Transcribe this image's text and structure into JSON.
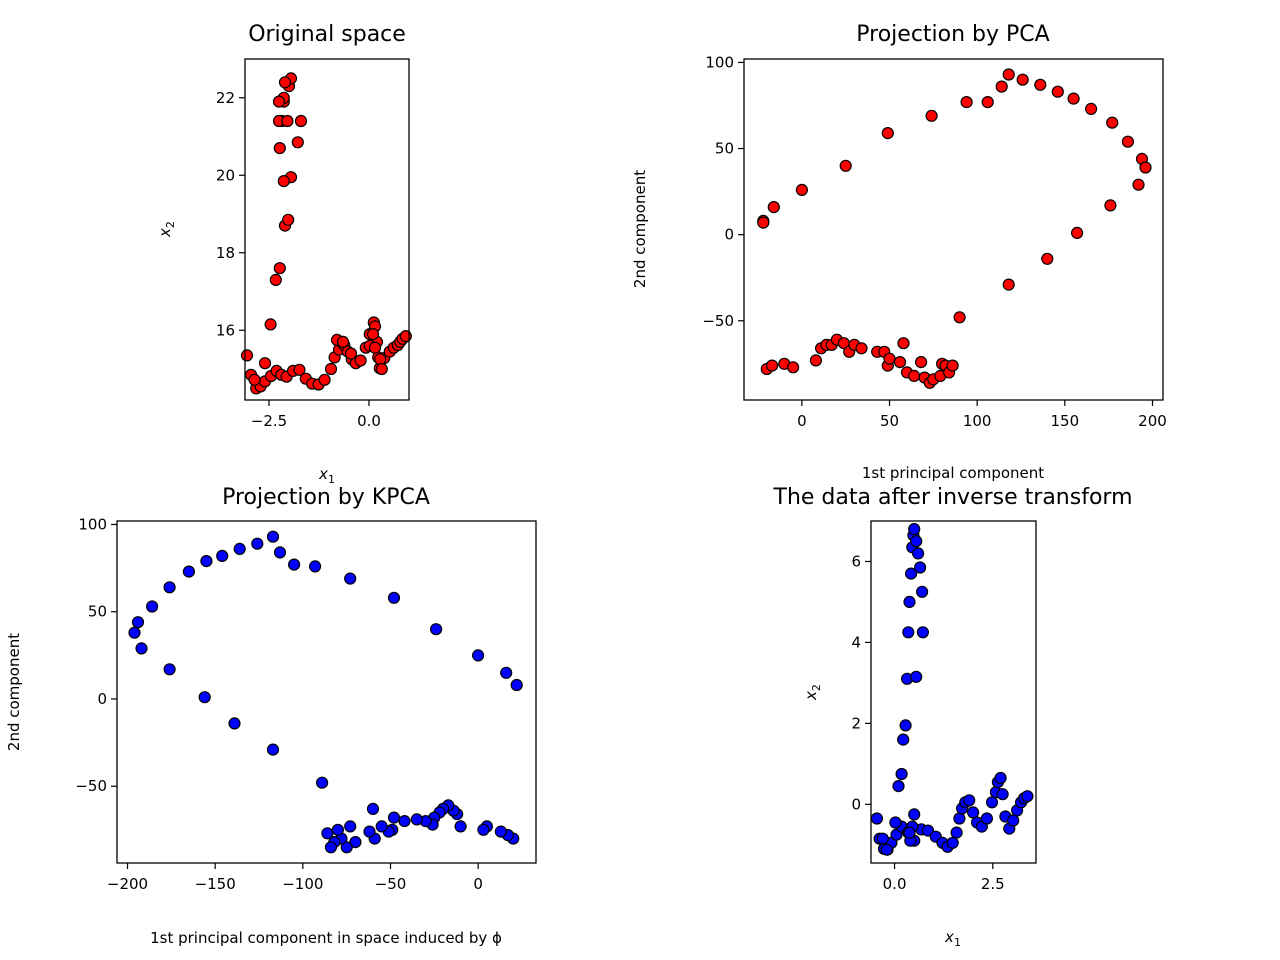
{
  "charts": [
    {
      "type": "scatter",
      "title": "Original space",
      "xlabel": "x1",
      "ylabel": "x2",
      "xlim": [
        -3.1,
        1.0
      ],
      "ylim": [
        14.2,
        23.0
      ],
      "xticks": [
        -2.5,
        0.0
      ],
      "xtick_labels": [
        "−2.5",
        "0.0"
      ],
      "yticks": [
        16,
        18,
        20,
        22
      ],
      "ytick_labels": [
        "16",
        "18",
        "20",
        "22"
      ],
      "marker_color": "#ff0000",
      "series": [
        {
          "x": [
            -2.82,
            -2.71,
            -2.6,
            -2.45,
            -2.31,
            -2.19,
            -2.06,
            -1.9,
            -1.74,
            -1.58,
            -1.42,
            -1.26,
            -1.11,
            -0.95,
            -0.86,
            -0.75,
            -0.7,
            -0.62,
            -0.53,
            -0.43,
            -0.33,
            -0.21,
            -0.08,
            0.02,
            0.12,
            0.15,
            0.2,
            0.23,
            0.27,
            0.38,
            0.52,
            0.62,
            0.72,
            0.78,
            0.84,
            0.92,
            -3.05,
            -2.95,
            -2.86,
            -2.6,
            -2.46,
            -2.33,
            -2.23,
            -2.1,
            -2.02,
            -1.95,
            -2.13,
            -2.23,
            -2.18,
            -2.13,
            -2.0,
            -1.95,
            -2.1,
            -2.13,
            -2.25,
            -2.25,
            -2.04,
            -1.78,
            -1.7,
            -0.8,
            -0.65,
            -0.45,
            0.02,
            0.28,
            0.32,
            0.1,
            0.15
          ],
          "y": [
            14.5,
            14.55,
            14.68,
            14.82,
            14.95,
            14.85,
            14.8,
            14.95,
            14.98,
            14.75,
            14.62,
            14.6,
            14.72,
            15.0,
            15.3,
            15.5,
            15.7,
            15.62,
            15.45,
            15.25,
            15.15,
            15.22,
            15.55,
            15.9,
            16.2,
            16.1,
            15.7,
            15.3,
            15.02,
            15.28,
            15.45,
            15.55,
            15.62,
            15.7,
            15.78,
            15.85,
            15.35,
            14.85,
            14.72,
            15.15,
            16.15,
            17.3,
            17.6,
            18.7,
            18.85,
            19.95,
            19.85,
            20.7,
            21.4,
            21.9,
            22.3,
            22.5,
            22.4,
            22.0,
            21.9,
            21.4,
            21.4,
            20.85,
            21.4,
            15.75,
            15.7,
            15.4,
            15.6,
            15.25,
            15.0,
            15.9,
            15.55
          ]
        }
      ]
    },
    {
      "type": "scatter",
      "title": "Projection by PCA",
      "xlabel": "1st principal component",
      "ylabel": "2nd component",
      "xlim": [
        -33,
        206
      ],
      "ylim": [
        -96,
        102
      ],
      "xticks": [
        0,
        50,
        100,
        150,
        200
      ],
      "xtick_labels": [
        "0",
        "50",
        "100",
        "150",
        "200"
      ],
      "yticks": [
        -50,
        0,
        50,
        100
      ],
      "ytick_labels": [
        "−50",
        "0",
        "50",
        "100"
      ],
      "marker_color": "#ff0000",
      "series": [
        {
          "x": [
            -22,
            -16,
            0,
            25,
            49,
            74,
            94,
            106,
            114,
            118,
            126,
            136,
            146,
            155,
            165,
            177,
            186,
            194,
            196,
            192,
            176,
            157,
            140,
            118,
            90,
            -22,
            -20,
            -17,
            -10,
            -5,
            8,
            11,
            14,
            17,
            20,
            24,
            27,
            30,
            34,
            43,
            47,
            49,
            50,
            56,
            58,
            60,
            64,
            68,
            70,
            73,
            75,
            79,
            80,
            82,
            84,
            86
          ],
          "y": [
            8,
            16,
            26,
            40,
            59,
            69,
            77,
            77,
            86,
            93,
            90,
            87,
            83,
            79,
            73,
            65,
            54,
            44,
            39,
            29,
            17,
            1,
            -14,
            -29,
            -48,
            7,
            -78,
            -76,
            -75,
            -77,
            -73,
            -66,
            -64,
            -64,
            -61,
            -63,
            -68,
            -64,
            -66,
            -68,
            -68,
            -76,
            -72,
            -74,
            -63,
            -80,
            -82,
            -74,
            -83,
            -86,
            -84,
            -82,
            -75,
            -76,
            -80,
            -76
          ]
        }
      ]
    },
    {
      "type": "scatter",
      "title": "Projection by KPCA",
      "xlabel": "1st principal component in space induced by ϕ",
      "ylabel": "2nd component",
      "xlim": [
        -206,
        33
      ],
      "ylim": [
        -94,
        102
      ],
      "xticks": [
        -200,
        -150,
        -100,
        -50,
        0
      ],
      "xtick_labels": [
        "−200",
        "−150",
        "−100",
        "−50",
        "0"
      ],
      "yticks": [
        -50,
        0,
        50,
        100
      ],
      "ytick_labels": [
        "−50",
        "0",
        "50",
        "100"
      ],
      "marker_color": "#0000ff",
      "series": [
        {
          "x": [
            22,
            16,
            0,
            -24,
            -48,
            -73,
            -93,
            -105,
            -113,
            -117,
            -126,
            -136,
            -146,
            -155,
            -165,
            -176,
            -186,
            -194,
            -196,
            -192,
            -176,
            -156,
            -139,
            -117,
            -89,
            20,
            17,
            13,
            5,
            3,
            -10,
            -12,
            -14,
            -17,
            -20,
            -22,
            -25,
            -26,
            -30,
            -35,
            -42,
            -48,
            -49,
            -51,
            -55,
            -59,
            -60,
            -62,
            -70,
            -73,
            -75,
            -78,
            -80,
            -82,
            -84,
            -86
          ],
          "y": [
            8,
            15,
            25,
            40,
            58,
            69,
            76,
            77,
            84,
            93,
            89,
            86,
            82,
            79,
            73,
            64,
            53,
            44,
            38,
            29,
            17,
            1,
            -14,
            -29,
            -48,
            -80,
            -78,
            -76,
            -73,
            -75,
            -73,
            -66,
            -64,
            -61,
            -63,
            -65,
            -68,
            -72,
            -70,
            -69,
            -70,
            -68,
            -75,
            -76,
            -73,
            -80,
            -63,
            -76,
            -82,
            -73,
            -85,
            -80,
            -75,
            -82,
            -85,
            -77
          ]
        }
      ]
    },
    {
      "type": "scatter",
      "title": "The data after inverse transform",
      "xlabel": "x1",
      "ylabel": "x2",
      "xlim": [
        -0.6,
        3.6
      ],
      "ylim": [
        -1.45,
        7.0
      ],
      "xticks": [
        0.0,
        2.5
      ],
      "xtick_labels": [
        "0.0",
        "2.5"
      ],
      "yticks": [
        0,
        2,
        4,
        6
      ],
      "ytick_labels": [
        "0",
        "2",
        "4",
        "6"
      ],
      "marker_color": "#0000ff",
      "series": [
        {
          "x": [
            -0.38,
            -0.27,
            -0.18,
            -0.08,
            0.05,
            0.18,
            0.35,
            0.5,
            0.68,
            0.85,
            1.05,
            1.22,
            1.35,
            1.48,
            1.58,
            1.65,
            1.72,
            1.8,
            1.9,
            2.0,
            2.1,
            2.22,
            2.35,
            2.48,
            2.58,
            2.63,
            2.7,
            2.75,
            2.82,
            2.92,
            3.02,
            3.12,
            3.22,
            3.3,
            3.38,
            -0.45,
            -0.3,
            -0.2,
            0.02,
            0.1,
            0.18,
            0.22,
            0.28,
            0.32,
            0.35,
            0.38,
            0.42,
            0.45,
            0.48,
            0.5,
            0.55,
            0.6,
            0.65,
            0.7,
            0.72,
            0.55,
            0.5,
            0.45,
            0.4,
            0.38
          ],
          "y": [
            -0.85,
            -1.1,
            -1.12,
            -0.95,
            -0.75,
            -0.55,
            -0.7,
            -0.9,
            -0.62,
            -0.65,
            -0.8,
            -0.95,
            -1.05,
            -0.95,
            -0.7,
            -0.35,
            -0.1,
            0.05,
            0.1,
            -0.2,
            -0.45,
            -0.55,
            -0.35,
            0.05,
            0.3,
            0.55,
            0.65,
            0.25,
            -0.3,
            -0.6,
            -0.4,
            -0.15,
            0.05,
            0.15,
            0.2,
            -0.35,
            -0.85,
            -1.12,
            -0.45,
            0.45,
            0.75,
            1.6,
            1.95,
            3.1,
            4.25,
            5.0,
            5.7,
            6.35,
            6.65,
            6.8,
            6.5,
            6.2,
            5.85,
            5.25,
            4.25,
            3.15,
            -0.25,
            -0.55,
            -0.9,
            -0.7
          ]
        }
      ]
    }
  ]
}
